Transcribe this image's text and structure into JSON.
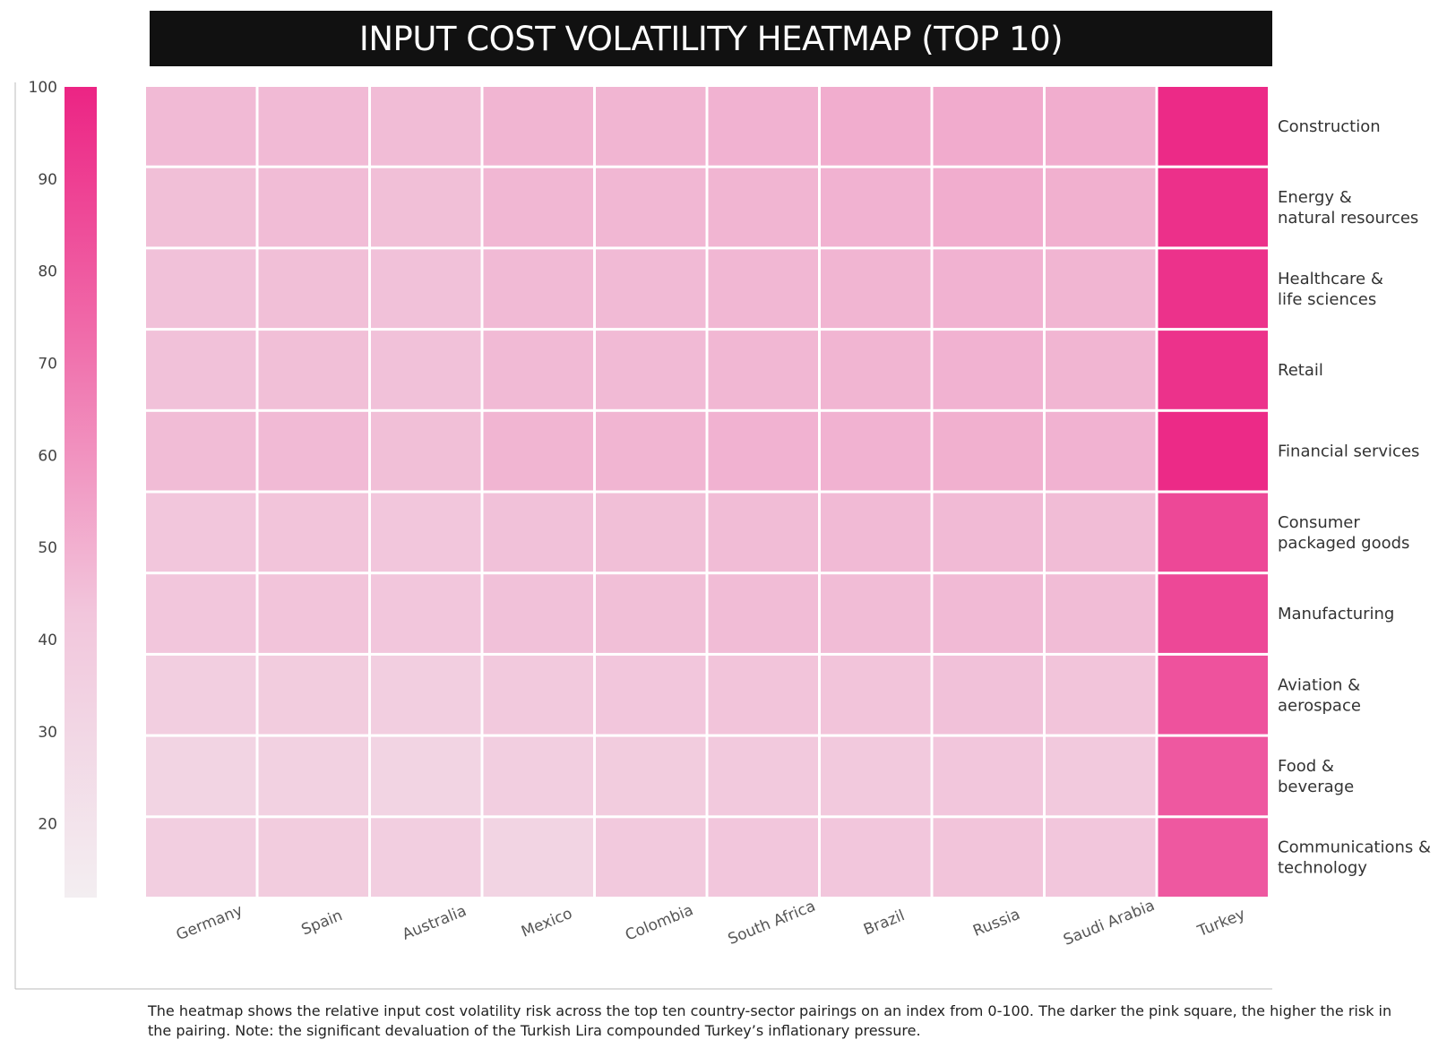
{
  "chart_data": {
    "type": "heatmap",
    "title": "INPUT COST VOLATILITY HEATMAP (TOP 10)",
    "caption": "The heatmap shows the relative input cost volatility risk across the top ten country-sector pairings on an index from 0-100. The darker the pink square, the higher the risk in the pairing. Note: the significant devaluation of the Turkish Lira compounded Turkey’s inflationary pressure.",
    "columns": [
      "Germany",
      "Spain",
      "Australia",
      "Mexico",
      "Colombia",
      "South Africa",
      "Brazil",
      "Russia",
      "Saudi Arabia",
      "Turkey"
    ],
    "rows": [
      {
        "lines": [
          "Construction"
        ],
        "values": [
          30,
          30,
          29,
          32,
          32,
          33,
          35,
          36,
          35,
          97
        ]
      },
      {
        "lines": [
          "Energy &",
          "natural resources"
        ],
        "values": [
          28,
          29,
          28,
          31,
          31,
          32,
          33,
          35,
          34,
          94
        ]
      },
      {
        "lines": [
          "Healthcare &",
          "life sciences"
        ],
        "values": [
          27,
          28,
          27,
          30,
          30,
          31,
          32,
          33,
          32,
          93
        ]
      },
      {
        "lines": [
          "Retail"
        ],
        "values": [
          27,
          28,
          27,
          30,
          30,
          31,
          32,
          33,
          32,
          93
        ]
      },
      {
        "lines": [
          "Financial services"
        ],
        "values": [
          29,
          30,
          28,
          32,
          32,
          33,
          33,
          34,
          33,
          97
        ]
      },
      {
        "lines": [
          "Consumer",
          "packaged goods"
        ],
        "values": [
          25,
          26,
          25,
          27,
          28,
          29,
          30,
          30,
          29,
          82
        ]
      },
      {
        "lines": [
          "Manufacturing"
        ],
        "values": [
          25,
          26,
          25,
          27,
          28,
          29,
          29,
          30,
          29,
          82
        ]
      },
      {
        "lines": [
          "Aviation &",
          "aerospace"
        ],
        "values": [
          22,
          23,
          22,
          24,
          25,
          26,
          26,
          27,
          26,
          77
        ]
      },
      {
        "lines": [
          "Food &",
          "beverage"
        ],
        "values": [
          20,
          21,
          20,
          22,
          23,
          24,
          24,
          25,
          24,
          74
        ]
      },
      {
        "lines": [
          "Communications &",
          "technology"
        ],
        "values": [
          22,
          23,
          22,
          20,
          24,
          25,
          25,
          26,
          25,
          74
        ]
      }
    ],
    "scale": {
      "min": 12,
      "max": 100,
      "ticks": [
        100,
        90,
        80,
        70,
        60,
        50,
        40,
        30,
        20
      ],
      "color_low": "#f3eef1",
      "color_high": "#ec2484"
    }
  }
}
